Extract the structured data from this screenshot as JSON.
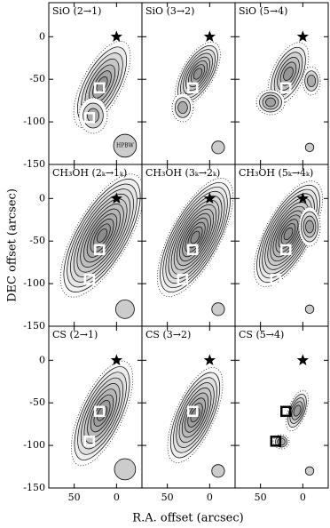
{
  "figure": {
    "xlabel": "R.A. offset (arcsec)",
    "ylabel": "DEC offset (arcsec)"
  },
  "chart_data": [
    {
      "type": "map",
      "title": "SiO (2→1)",
      "xlim": [
        80,
        -30
      ],
      "ylim": [
        -150,
        40
      ],
      "xticks": [
        50,
        0
      ],
      "yticks": [
        0,
        -50,
        -100,
        -150
      ],
      "star": {
        "x": 0,
        "y": 0
      },
      "sources": [
        {
          "x": 20,
          "y": -60
        },
        {
          "x": 32,
          "y": -95
        }
      ],
      "beam": {
        "x": -10,
        "y": -128,
        "size": 27,
        "label": "HPBW"
      }
    },
    {
      "type": "map",
      "title": "SiO (3→2)",
      "xlim": [
        80,
        -30
      ],
      "ylim": [
        -150,
        40
      ],
      "xticks": [
        50,
        0
      ],
      "yticks": [
        0,
        -50,
        -100,
        -150
      ],
      "star": {
        "x": 0,
        "y": 0
      },
      "sources": [
        {
          "x": 20,
          "y": -60
        }
      ],
      "beam": {
        "x": -10,
        "y": -130,
        "size": 15
      }
    },
    {
      "type": "map",
      "title": "SiO (5→4)",
      "xlim": [
        80,
        -30
      ],
      "ylim": [
        -150,
        40
      ],
      "xticks": [
        50,
        0
      ],
      "yticks": [
        0,
        -50,
        -100,
        -150
      ],
      "star": {
        "x": 0,
        "y": 0
      },
      "sources": [
        {
          "x": 20,
          "y": -60
        }
      ],
      "beam": {
        "x": -8,
        "y": -130,
        "size": 10
      }
    },
    {
      "type": "map",
      "title": "CH₃OH (2ₖ→1ₖ)",
      "xlim": [
        80,
        -30
      ],
      "ylim": [
        -150,
        40
      ],
      "xticks": [
        50,
        0
      ],
      "yticks": [
        0,
        -50,
        -100,
        -150
      ],
      "star": {
        "x": 0,
        "y": 0
      },
      "sources": [
        {
          "x": 20,
          "y": -60
        },
        {
          "x": 32,
          "y": -95
        }
      ],
      "beam": {
        "x": -10,
        "y": -130,
        "size": 22
      }
    },
    {
      "type": "map",
      "title": "CH₃OH (3ₖ→2ₖ)",
      "xlim": [
        80,
        -30
      ],
      "ylim": [
        -150,
        40
      ],
      "xticks": [
        50,
        0
      ],
      "yticks": [
        0,
        -50,
        -100,
        -150
      ],
      "star": {
        "x": 0,
        "y": 0
      },
      "sources": [
        {
          "x": 20,
          "y": -60
        },
        {
          "x": 32,
          "y": -95
        }
      ],
      "beam": {
        "x": -10,
        "y": -130,
        "size": 15
      }
    },
    {
      "type": "map",
      "title": "CH₃OH (5ₖ→4ₖ)",
      "xlim": [
        80,
        -30
      ],
      "ylim": [
        -150,
        40
      ],
      "xticks": [
        50,
        0
      ],
      "yticks": [
        0,
        -50,
        -100,
        -150
      ],
      "star": {
        "x": 0,
        "y": 0
      },
      "sources": [
        {
          "x": 20,
          "y": -60
        },
        {
          "x": 32,
          "y": -95
        }
      ],
      "beam": {
        "x": -8,
        "y": -130,
        "size": 10
      }
    },
    {
      "type": "map",
      "title": "CS (2→1)",
      "xlim": [
        80,
        -30
      ],
      "ylim": [
        -150,
        40
      ],
      "xticks": [
        50,
        0
      ],
      "yticks": [
        0,
        -50,
        -100,
        -150
      ],
      "star": {
        "x": 0,
        "y": 0
      },
      "sources": [
        {
          "x": 20,
          "y": -60
        },
        {
          "x": 32,
          "y": -95
        }
      ],
      "beam": {
        "x": -10,
        "y": -128,
        "size": 25
      }
    },
    {
      "type": "map",
      "title": "CS (3→2)",
      "xlim": [
        80,
        -30
      ],
      "ylim": [
        -150,
        40
      ],
      "xticks": [
        50,
        0
      ],
      "yticks": [
        0,
        -50,
        -100,
        -150
      ],
      "star": {
        "x": 0,
        "y": 0
      },
      "sources": [
        {
          "x": 20,
          "y": -60
        }
      ],
      "beam": {
        "x": -10,
        "y": -130,
        "size": 15
      }
    },
    {
      "type": "map",
      "title": "CS (5→4)",
      "xlim": [
        80,
        -30
      ],
      "ylim": [
        -150,
        40
      ],
      "xticks": [
        50,
        0
      ],
      "yticks": [
        0,
        -50,
        -100,
        -150
      ],
      "star": {
        "x": 0,
        "y": 0
      },
      "sources": [
        {
          "x": 20,
          "y": -60
        },
        {
          "x": 32,
          "y": -95
        }
      ],
      "beam": {
        "x": -8,
        "y": -130,
        "size": 10
      }
    }
  ]
}
